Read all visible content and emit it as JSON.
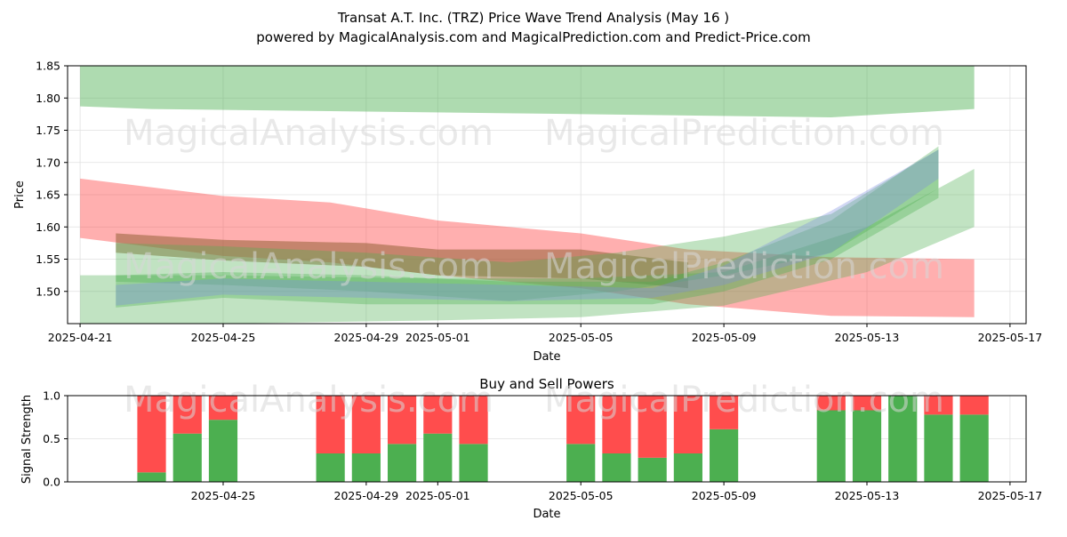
{
  "header": {
    "title": "Transat A.T. Inc. (TRZ) Price Wave Trend Analysis (May 16 )",
    "subtitle": "powered by MagicalAnalysis.com and MagicalPrediction.com and Predict-Price.com"
  },
  "watermarks": [
    "MagicalAnalysis.com",
    "MagicalPrediction.com"
  ],
  "colors": {
    "green": "#4caf50",
    "red": "#ff4d4d",
    "blue": "#7b8be0",
    "brown": "#8b5a2b",
    "grid": "#e0e0e0"
  },
  "chart_data": [
    {
      "type": "area",
      "xlabel": "Date",
      "ylabel": "Price",
      "xlim": [
        "2025-04-21",
        "2025-05-17"
      ],
      "ylim": [
        1.45,
        1.85
      ],
      "x_ticks": [
        "2025-04-21",
        "2025-04-25",
        "2025-04-29",
        "2025-05-01",
        "2025-05-05",
        "2025-05-09",
        "2025-05-13",
        "2025-05-17"
      ],
      "y_ticks": [
        1.5,
        1.55,
        1.6,
        1.65,
        1.7,
        1.75,
        1.8,
        1.85
      ],
      "grid": true,
      "bands": [
        {
          "color": "green",
          "x": [
            "2025-04-21",
            "2025-04-23",
            "2025-04-29",
            "2025-05-05",
            "2025-05-12",
            "2025-05-16"
          ],
          "upper": [
            1.85,
            1.85,
            1.85,
            1.85,
            1.85,
            1.85
          ],
          "lower": [
            1.787,
            1.783,
            1.779,
            1.775,
            1.77,
            1.783
          ]
        },
        {
          "color": "red",
          "x": [
            "2025-04-21",
            "2025-04-25",
            "2025-04-28",
            "2025-05-01",
            "2025-05-05",
            "2025-05-08",
            "2025-05-12",
            "2025-05-16"
          ],
          "upper": [
            1.675,
            1.648,
            1.638,
            1.61,
            1.59,
            1.565,
            1.553,
            1.55
          ],
          "lower": [
            1.583,
            1.555,
            1.545,
            1.525,
            1.505,
            1.48,
            1.462,
            1.46
          ]
        },
        {
          "color": "brown",
          "x": [
            "2025-04-22",
            "2025-04-25",
            "2025-04-29",
            "2025-05-01",
            "2025-05-05",
            "2025-05-08"
          ],
          "upper": [
            1.59,
            1.58,
            1.575,
            1.565,
            1.565,
            1.545
          ],
          "lower": [
            1.56,
            1.548,
            1.538,
            1.525,
            1.52,
            1.505
          ]
        },
        {
          "color": "green",
          "x": [
            "2025-04-21",
            "2025-04-25",
            "2025-05-01",
            "2025-05-05",
            "2025-05-09",
            "2025-05-13",
            "2025-05-16"
          ],
          "upper": [
            1.525,
            1.525,
            1.52,
            1.52,
            1.53,
            1.6,
            1.69
          ],
          "lower": [
            1.45,
            1.45,
            1.455,
            1.46,
            1.478,
            1.53,
            1.6
          ]
        },
        {
          "color": "green",
          "x": [
            "2025-04-22",
            "2025-04-25",
            "2025-04-29",
            "2025-05-03",
            "2025-05-06",
            "2025-05-09",
            "2025-05-12",
            "2025-05-15"
          ],
          "upper": [
            1.575,
            1.57,
            1.56,
            1.545,
            1.56,
            1.585,
            1.62,
            1.72
          ]
        },
        {
          "color": "green",
          "x": [
            "2025-04-22",
            "2025-04-25",
            "2025-04-29",
            "2025-05-03",
            "2025-05-07",
            "2025-05-09",
            "2025-05-12",
            "2025-05-15"
          ],
          "upper": [
            1.525,
            1.53,
            1.525,
            1.515,
            1.515,
            1.545,
            1.61,
            1.725
          ],
          "lower": [
            1.475,
            1.49,
            1.48,
            1.48,
            1.48,
            1.5,
            1.55,
            1.645
          ]
        },
        {
          "color": "blue",
          "x": [
            "2025-04-22",
            "2025-04-25",
            "2025-04-29",
            "2025-05-03",
            "2025-05-07",
            "2025-05-09",
            "2025-05-12",
            "2025-05-15"
          ],
          "upper": [
            1.51,
            1.52,
            1.515,
            1.51,
            1.505,
            1.54,
            1.625,
            1.72
          ],
          "lower": [
            1.478,
            1.495,
            1.49,
            1.485,
            1.49,
            1.51,
            1.56,
            1.675
          ]
        }
      ]
    },
    {
      "type": "bar",
      "title": "Buy and Sell Powers",
      "xlabel": "Date",
      "ylabel": "Signal Strength",
      "ylim": [
        0,
        1.0
      ],
      "y_ticks": [
        0.0,
        0.5,
        1.0
      ],
      "x_ticks": [
        "2025-04-25",
        "2025-04-29",
        "2025-05-01",
        "2025-05-05",
        "2025-05-09",
        "2025-05-13",
        "2025-05-17"
      ],
      "grid": true,
      "series": [
        {
          "color": "green",
          "values": [
            0.11,
            0.56,
            0.72,
            0.33,
            0.33,
            0.44,
            0.56,
            0.44,
            0.44,
            0.33,
            0.28,
            0.33,
            0.61,
            0.83,
            0.83,
            1.0,
            0.78,
            0.78
          ]
        },
        {
          "color": "red",
          "values": [
            0.89,
            0.44,
            0.28,
            0.67,
            0.67,
            0.56,
            0.44,
            0.56,
            0.56,
            0.67,
            0.72,
            0.67,
            0.39,
            0.17,
            0.17,
            0.0,
            0.22,
            0.22
          ]
        }
      ],
      "dates": [
        "2025-04-23",
        "2025-04-24",
        "2025-04-25",
        "2025-04-28",
        "2025-04-29",
        "2025-04-30",
        "2025-05-01",
        "2025-05-02",
        "2025-05-05",
        "2025-05-06",
        "2025-05-07",
        "2025-05-08",
        "2025-05-09",
        "2025-05-12",
        "2025-05-13",
        "2025-05-14",
        "2025-05-15",
        "2025-05-16"
      ]
    }
  ]
}
